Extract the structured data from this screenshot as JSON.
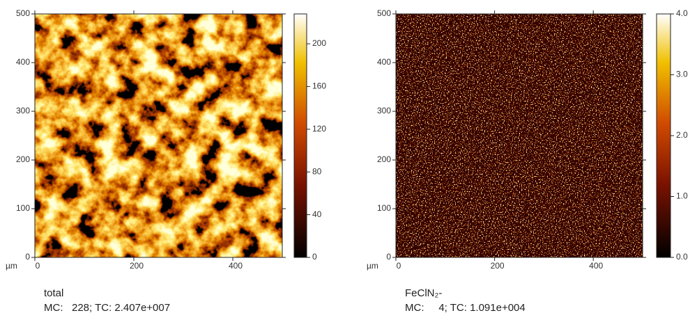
{
  "chart_data": [
    {
      "type": "heatmap",
      "name": "total",
      "stats": "MC:   228; TC: 2.407e+007",
      "x_label": "µm",
      "xlim": [
        0,
        500
      ],
      "xticks": [
        0,
        200,
        400
      ],
      "ylim": [
        0,
        500
      ],
      "yticks": [
        0,
        100,
        200,
        300,
        400,
        500
      ],
      "colorbar": {
        "lim": [
          0,
          228
        ],
        "ticks": [
          0,
          40,
          80,
          120,
          160,
          200
        ]
      }
    },
    {
      "type": "heatmap",
      "name": "FeClN₂-",
      "stats": "MC:     4; TC: 1.091e+004",
      "x_label": "µm",
      "xlim": [
        0,
        500
      ],
      "xticks": [
        0,
        200,
        400
      ],
      "ylim": [
        0,
        500
      ],
      "yticks": [
        0,
        100,
        200,
        300,
        400,
        500
      ],
      "colorbar": {
        "lim": [
          0,
          4
        ],
        "ticks": [
          {
            "value": 0,
            "label": "0.0"
          },
          {
            "value": 1,
            "label": "1.0"
          },
          {
            "value": 2,
            "label": "2.0"
          },
          {
            "value": 3,
            "label": "3.0"
          },
          {
            "value": 4,
            "label": "4.0"
          }
        ]
      }
    }
  ]
}
